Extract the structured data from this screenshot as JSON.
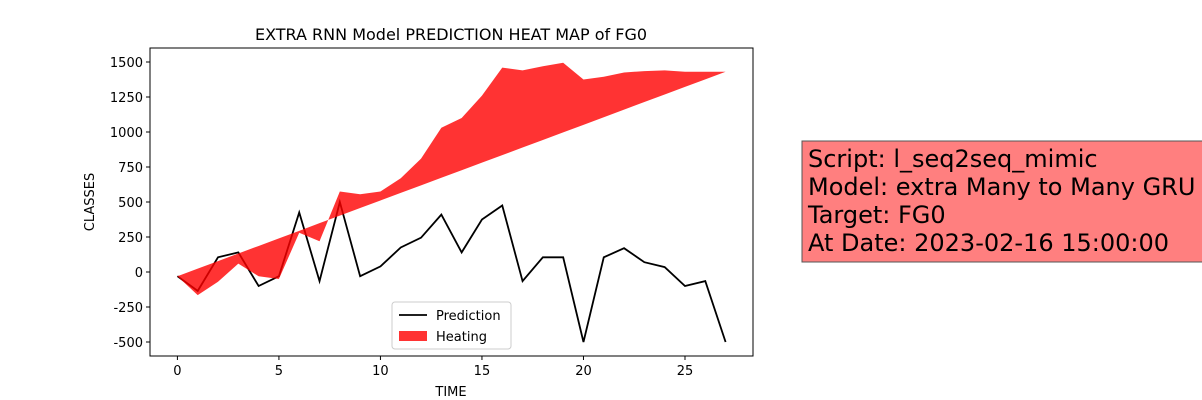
{
  "chart_data": {
    "type": "line_band",
    "title": "EXTRA RNN Model PREDICTION HEAT MAP of FG0",
    "x_label": "TIME",
    "y_label": "CLASSES",
    "x": [
      0,
      1,
      2,
      3,
      4,
      5,
      6,
      7,
      8,
      9,
      10,
      11,
      12,
      13,
      14,
      15,
      16,
      17,
      18,
      19,
      20,
      21,
      22,
      23,
      24,
      25,
      26,
      27
    ],
    "series": [
      {
        "name": "Prediction",
        "color": "#000000",
        "values": [
          -30,
          -135,
          105,
          140,
          -100,
          -30,
          425,
          -65,
          500,
          -30,
          40,
          175,
          245,
          410,
          140,
          375,
          475,
          -65,
          105,
          105,
          -500,
          105,
          170,
          70,
          35,
          -100,
          -65,
          -500
        ]
      },
      {
        "name": "Heating",
        "color": "#ff0000",
        "values": [
          -30,
          -165,
          -70,
          60,
          -30,
          -50,
          280,
          220,
          575,
          555,
          575,
          670,
          810,
          1030,
          1100,
          1260,
          1460,
          1440,
          1470,
          1495,
          1375,
          1395,
          1425,
          1435,
          1440,
          1430,
          1430,
          1430
        ],
        "baseline": [
          -30,
          24,
          78,
          132,
          186,
          240,
          294,
          349,
          403,
          457,
          511,
          565,
          619,
          673,
          727,
          781,
          835,
          889,
          943,
          997,
          1051,
          1105,
          1160,
          1214,
          1268,
          1322,
          1376,
          1430
        ]
      }
    ],
    "xlim": [
      -1.35,
      28.35
    ],
    "ylim": [
      -600,
      1600
    ],
    "xticks": [
      0,
      5,
      10,
      15,
      20,
      25
    ],
    "yticks": [
      -500,
      -250,
      0,
      250,
      500,
      750,
      1000,
      1250,
      1500
    ],
    "legend": "lower center",
    "annotation": [
      "Script: l_seq2seq_mimic",
      "Model: extra Many to Many GRU",
      "Target: FG0",
      "At Date: 2023-02-16 15:00:00"
    ]
  }
}
